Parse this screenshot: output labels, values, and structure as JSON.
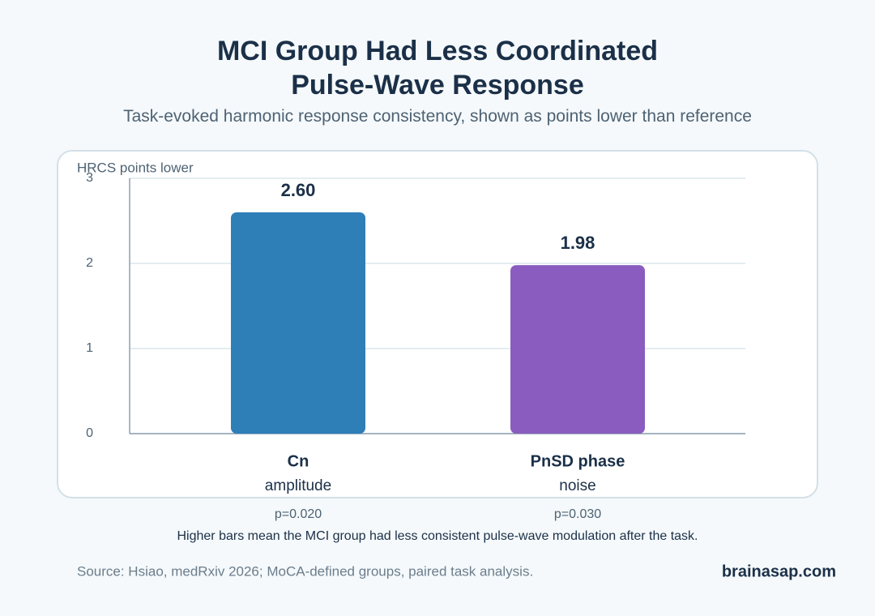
{
  "chart_data": {
    "type": "bar",
    "title": "MCI Group Had Less Coordinated Pulse-Wave Response",
    "subtitle": "Task-evoked harmonic response consistency, shown as points lower than reference",
    "y_label": "HRCS points lower",
    "categories": [
      "Cn",
      "PnSD phase"
    ],
    "category_details": [
      "amplitude",
      "noise"
    ],
    "p_values": [
      "p=0.020",
      "p=0.030"
    ],
    "values": [
      2.6,
      1.98
    ],
    "value_labels": [
      "2.60",
      "1.98"
    ],
    "colors": [
      "#2e7eb8",
      "#8a5cbf"
    ],
    "ylim": [
      0,
      3
    ],
    "yticks": [
      0,
      1,
      2,
      3
    ],
    "grid": true,
    "note": "Higher bars mean the MCI group had less consistent pulse-wave modulation after the task.",
    "source": "Source: Hsiao, medRxiv 2026; MoCA-defined groups, paired task analysis.",
    "brand": "brainasap.com"
  }
}
